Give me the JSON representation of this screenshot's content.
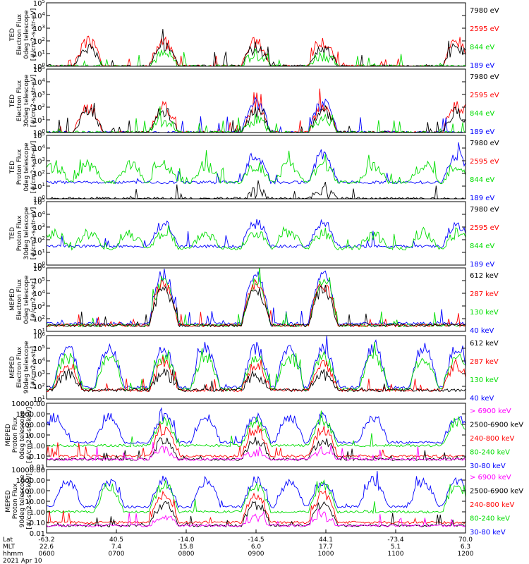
{
  "colors": {
    "black": "#000000",
    "red": "#ff0000",
    "green": "#00dd00",
    "blue": "#0000ff",
    "magenta": "#ff00ff"
  },
  "chart_data": [
    {
      "type": "line",
      "scale": "log",
      "ylim": [
        1,
        100000
      ],
      "ylabel": [
        "TED",
        "Electron Flux",
        "0deg telescope",
        "[#/cm2-s-str-eV]"
      ],
      "yticks": [
        {
          "v": 1,
          "e": "0"
        },
        {
          "v": 10,
          "e": "1"
        },
        {
          "v": 100,
          "e": "2"
        },
        {
          "v": 1000,
          "e": "3"
        },
        {
          "v": 10000,
          "e": "4"
        },
        {
          "v": 100000,
          "e": "5"
        }
      ],
      "series": [
        {
          "name": "7980 eV",
          "color": "#000000"
        },
        {
          "name": "2595 eV",
          "color": "#ff0000"
        },
        {
          "name": "844 eV",
          "color": "#00dd00"
        },
        {
          "name": "189 eV",
          "color": "#0000ff"
        }
      ],
      "profile": [
        {
          "c": "#ff0000",
          "peak": 80,
          "base": 1,
          "seed": 3,
          "hump": [
            0.1,
            0.28,
            0.5,
            0.66,
            0.98
          ]
        },
        {
          "c": "#000000",
          "peak": 30,
          "base": 1,
          "seed": 5,
          "hump": [
            0.1,
            0.28,
            0.5,
            0.66,
            0.98
          ]
        },
        {
          "c": "#00dd00",
          "peak": 8,
          "base": 1,
          "seed": 7,
          "hump": [
            0.28,
            0.5,
            0.66
          ]
        }
      ]
    },
    {
      "type": "line",
      "scale": "log",
      "ylim": [
        1,
        100000
      ],
      "ylabel": [
        "TED",
        "Electron Flux",
        "30deg telescope",
        "[#/cm2-s-str-eV]"
      ],
      "yticks": [
        {
          "v": 1,
          "e": "0"
        },
        {
          "v": 10,
          "e": "1"
        },
        {
          "v": 100,
          "e": "2"
        },
        {
          "v": 1000,
          "e": "3"
        },
        {
          "v": 10000,
          "e": "4"
        },
        {
          "v": 100000,
          "e": "5"
        }
      ],
      "series": [
        {
          "name": "7980 eV",
          "color": "#000000"
        },
        {
          "name": "2595 eV",
          "color": "#ff0000"
        },
        {
          "name": "844 eV",
          "color": "#00dd00"
        },
        {
          "name": "189 eV",
          "color": "#0000ff"
        }
      ],
      "profile": [
        {
          "c": "#ff0000",
          "peak": 100,
          "base": 1,
          "seed": 11,
          "hump": [
            0.1,
            0.28,
            0.5,
            0.66,
            0.98
          ]
        },
        {
          "c": "#0000ff",
          "peak": 200,
          "base": 1,
          "seed": 13,
          "hump": [
            0.5,
            0.66
          ]
        },
        {
          "c": "#000000",
          "peak": 40,
          "base": 1,
          "seed": 17,
          "hump": [
            0.1,
            0.28,
            0.5,
            0.66,
            0.98
          ]
        },
        {
          "c": "#00dd00",
          "peak": 10,
          "base": 1,
          "seed": 19,
          "hump": [
            0.28,
            0.5,
            0.66
          ]
        }
      ]
    },
    {
      "type": "line",
      "scale": "log",
      "ylim": [
        1,
        100000
      ],
      "ylabel": [
        "TED",
        "Proton Flux",
        "0deg telescope",
        "[#/cm2-s-str-eV]"
      ],
      "yticks": [
        {
          "v": 1,
          "e": "0"
        },
        {
          "v": 10,
          "e": "1"
        },
        {
          "v": 100,
          "e": "2"
        },
        {
          "v": 1000,
          "e": "3"
        },
        {
          "v": 10000,
          "e": "4"
        },
        {
          "v": 100000,
          "e": "5"
        }
      ],
      "series": [
        {
          "name": "7980 eV",
          "color": "#000000"
        },
        {
          "name": "2595 eV",
          "color": "#ff0000"
        },
        {
          "name": "844 eV",
          "color": "#00dd00"
        },
        {
          "name": "189 eV",
          "color": "#0000ff"
        }
      ],
      "profile": [
        {
          "c": "#0000ff",
          "peak": 3000,
          "base": 20,
          "seed": 23,
          "hump": [
            0.5,
            0.66,
            0.98
          ]
        },
        {
          "c": "#00dd00",
          "peak": 400,
          "base": 20,
          "seed": 29,
          "hump": [
            0.02,
            0.1,
            0.2,
            0.28,
            0.38,
            0.5,
            0.58,
            0.66,
            0.78,
            0.9,
            0.98
          ]
        },
        {
          "c": "#000000",
          "peak": 3,
          "base": 1,
          "seed": 31,
          "hump": [
            0.5,
            0.66
          ]
        }
      ]
    },
    {
      "type": "line",
      "scale": "log",
      "ylim": [
        1,
        100000
      ],
      "ylabel": [
        "TED",
        "Proton Flux",
        "30deg telescope",
        "[#/cm2-s-str-eV]"
      ],
      "yticks": [
        {
          "v": 1,
          "e": "0"
        },
        {
          "v": 10,
          "e": "1"
        },
        {
          "v": 100,
          "e": "2"
        },
        {
          "v": 1000,
          "e": "3"
        },
        {
          "v": 10000,
          "e": "4"
        },
        {
          "v": 100000,
          "e": "5"
        }
      ],
      "series": [
        {
          "name": "7980 eV",
          "color": "#000000"
        },
        {
          "name": "2595 eV",
          "color": "#ff0000"
        },
        {
          "name": "844 eV",
          "color": "#00dd00"
        },
        {
          "name": "189 eV",
          "color": "#0000ff"
        }
      ],
      "profile": [
        {
          "c": "#0000ff",
          "peak": 2000,
          "base": 30,
          "seed": 37,
          "hump": [
            0.28,
            0.5,
            0.66,
            0.98
          ]
        },
        {
          "c": "#00dd00",
          "peak": 300,
          "base": 20,
          "seed": 41,
          "hump": [
            0.02,
            0.1,
            0.2,
            0.28,
            0.38,
            0.5,
            0.58,
            0.66,
            0.78,
            0.9,
            0.98
          ]
        }
      ]
    },
    {
      "type": "line",
      "scale": "log",
      "ylim": [
        10,
        1000000
      ],
      "ylabel": [
        "MEPED",
        "Electron Flux",
        "0deg telescope",
        "[#/cm2-s-str]"
      ],
      "yticks": [
        {
          "v": 10,
          "e": "1"
        },
        {
          "v": 100,
          "e": "2"
        },
        {
          "v": 1000,
          "e": "3"
        },
        {
          "v": 10000,
          "e": "4"
        },
        {
          "v": 100000,
          "e": "5"
        },
        {
          "v": 1000000,
          "e": "6"
        }
      ],
      "series": [
        {
          "name": "612 keV",
          "color": "#000000"
        },
        {
          "name": "287 keV",
          "color": "#ff0000"
        },
        {
          "name": "130 keV",
          "color": "#00dd00"
        },
        {
          "name": "40 keV",
          "color": "#0000ff"
        }
      ],
      "profile": [
        {
          "c": "#0000ff",
          "peak": 300000,
          "base": 40,
          "seed": 43,
          "hump": [
            0.28,
            0.5,
            0.66
          ]
        },
        {
          "c": "#00dd00",
          "peak": 100000,
          "base": 30,
          "seed": 47,
          "hump": [
            0.28,
            0.5,
            0.66
          ]
        },
        {
          "c": "#ff0000",
          "peak": 50000,
          "base": 30,
          "seed": 53,
          "hump": [
            0.28,
            0.5,
            0.66
          ]
        },
        {
          "c": "#000000",
          "peak": 20000,
          "base": 30,
          "seed": 59,
          "hump": [
            0.28,
            0.5,
            0.66
          ]
        }
      ]
    },
    {
      "type": "line",
      "scale": "log",
      "ylim": [
        10,
        1000000
      ],
      "ylabel": [
        "MEPED",
        "Electron Flux",
        "90deg telescope",
        "[#/cm2-s-str]"
      ],
      "yticks": [
        {
          "v": 10,
          "e": "1"
        },
        {
          "v": 100,
          "e": "2"
        },
        {
          "v": 1000,
          "e": "3"
        },
        {
          "v": 10000,
          "e": "4"
        },
        {
          "v": 100000,
          "e": "5"
        },
        {
          "v": 1000000,
          "e": "6"
        }
      ],
      "series": [
        {
          "name": "612 keV",
          "color": "#000000"
        },
        {
          "name": "287 keV",
          "color": "#ff0000"
        },
        {
          "name": "130 keV",
          "color": "#00dd00"
        },
        {
          "name": "40 keV",
          "color": "#0000ff"
        }
      ],
      "profile": [
        {
          "c": "#0000ff",
          "peak": 100000,
          "base": 80,
          "seed": 61,
          "hump": [
            0.05,
            0.15,
            0.28,
            0.38,
            0.5,
            0.58,
            0.66,
            0.78,
            0.9,
            0.98
          ]
        },
        {
          "c": "#00dd00",
          "peak": 20000,
          "base": 60,
          "seed": 67,
          "hump": [
            0.05,
            0.15,
            0.28,
            0.38,
            0.5,
            0.58,
            0.66,
            0.78,
            0.9,
            0.98
          ]
        },
        {
          "c": "#ff0000",
          "peak": 5000,
          "base": 50,
          "seed": 71,
          "hump": [
            0.05,
            0.28,
            0.5,
            0.66,
            0.98
          ]
        },
        {
          "c": "#000000",
          "peak": 800,
          "base": 50,
          "seed": 73,
          "hump": [
            0.05,
            0.28,
            0.5,
            0.66
          ]
        }
      ]
    },
    {
      "type": "line",
      "scale": "log",
      "ylim": [
        0.01,
        10000
      ],
      "ylabel": [
        "MEPED",
        "Proton Flux",
        "0deg telescope",
        "[#/cm2-s-str-keV]"
      ],
      "yticks": [
        {
          "v": 0.01,
          "t": "0.01"
        },
        {
          "v": 0.1,
          "t": "0.10"
        },
        {
          "v": 1,
          "t": "1.00"
        },
        {
          "v": 10,
          "t": "10.00"
        },
        {
          "v": 100,
          "t": "100.00"
        },
        {
          "v": 1000,
          "t": "1000.00"
        },
        {
          "v": 10000,
          "t": "10000.00"
        }
      ],
      "series": [
        {
          "name": "> 6900 keV",
          "color": "#ff00ff"
        },
        {
          "name": "2500-6900 keV",
          "color": "#000000"
        },
        {
          "name": "240-800 keV",
          "color": "#ff0000"
        },
        {
          "name": "80-240 keV",
          "color": "#00dd00"
        },
        {
          "name": "30-80 keV",
          "color": "#0000ff"
        }
      ],
      "profile": [
        {
          "c": "#0000ff",
          "peak": 500,
          "base": 2,
          "seed": 79,
          "hump": [
            0.02,
            0.15,
            0.28,
            0.38,
            0.5,
            0.58,
            0.66,
            0.78,
            0.98
          ]
        },
        {
          "c": "#00dd00",
          "peak": 200,
          "base": 1,
          "seed": 83,
          "hump": [
            0.28,
            0.5,
            0.66,
            0.98
          ]
        },
        {
          "c": "#ff0000",
          "peak": 30,
          "base": 0.1,
          "seed": 89,
          "hump": [
            0.28,
            0.5,
            0.66
          ]
        },
        {
          "c": "#000000",
          "peak": 3,
          "base": 0.05,
          "seed": 97,
          "hump": [
            0.28,
            0.5,
            0.66
          ]
        },
        {
          "c": "#ff00ff",
          "peak": 0.3,
          "base": 0.05,
          "seed": 101,
          "hump": [
            0.28,
            0.5,
            0.66
          ]
        }
      ]
    },
    {
      "type": "line",
      "scale": "log",
      "ylim": [
        0.01,
        10000
      ],
      "ylabel": [
        "MEPED",
        "Proton Flux",
        "90deg telescope",
        "[#/cm2-s-str-keV]"
      ],
      "yticks": [
        {
          "v": 0.01,
          "t": "0.01"
        },
        {
          "v": 0.1,
          "t": "0.10"
        },
        {
          "v": 1,
          "t": "1.00"
        },
        {
          "v": 10,
          "t": "10.00"
        },
        {
          "v": 100,
          "t": "100.00"
        },
        {
          "v": 1000,
          "t": "1000.00"
        },
        {
          "v": 10000,
          "t": "10000.00"
        }
      ],
      "series": [
        {
          "name": "> 6900 keV",
          "color": "#ff00ff"
        },
        {
          "name": "2500-6900 keV",
          "color": "#000000"
        },
        {
          "name": "240-800 keV",
          "color": "#ff0000"
        },
        {
          "name": "80-240 keV",
          "color": "#00dd00"
        },
        {
          "name": "30-80 keV",
          "color": "#0000ff"
        }
      ],
      "profile": [
        {
          "c": "#0000ff",
          "peak": 800,
          "base": 3,
          "seed": 103,
          "hump": [
            0.05,
            0.15,
            0.28,
            0.38,
            0.5,
            0.58,
            0.66,
            0.78,
            0.9,
            0.98
          ]
        },
        {
          "c": "#00dd00",
          "peak": 300,
          "base": 1,
          "seed": 107,
          "hump": [
            0.15,
            0.28,
            0.5,
            0.66,
            0.98
          ]
        },
        {
          "c": "#ff0000",
          "peak": 40,
          "base": 0.1,
          "seed": 109,
          "hump": [
            0.28,
            0.5,
            0.66
          ]
        },
        {
          "c": "#000000",
          "peak": 5,
          "base": 0.05,
          "seed": 113,
          "hump": [
            0.28,
            0.5,
            0.66
          ]
        },
        {
          "c": "#ff00ff",
          "peak": 0.4,
          "base": 0.05,
          "seed": 127,
          "hump": [
            0.28,
            0.5,
            0.66
          ]
        }
      ]
    }
  ],
  "x_axis": {
    "row_labels": [
      "Lat",
      "MLT",
      "hhmm"
    ],
    "ticks": [
      {
        "lat": "-63.2",
        "mlt": "22.6",
        "hhmm": "0600"
      },
      {
        "lat": "40.5",
        "mlt": "7.4",
        "hhmm": "0700"
      },
      {
        "lat": "-14.0",
        "mlt": "15.8",
        "hhmm": "0800"
      },
      {
        "lat": "-14.5",
        "mlt": "6.0",
        "hhmm": "0900"
      },
      {
        "lat": "44.1",
        "mlt": "17.7",
        "hhmm": "1000"
      },
      {
        "lat": "-73.4",
        "mlt": "5.1",
        "hhmm": "1100"
      },
      {
        "lat": "70.0",
        "mlt": "6.3",
        "hhmm": "1200"
      }
    ],
    "date": "2021 Apr 10"
  }
}
